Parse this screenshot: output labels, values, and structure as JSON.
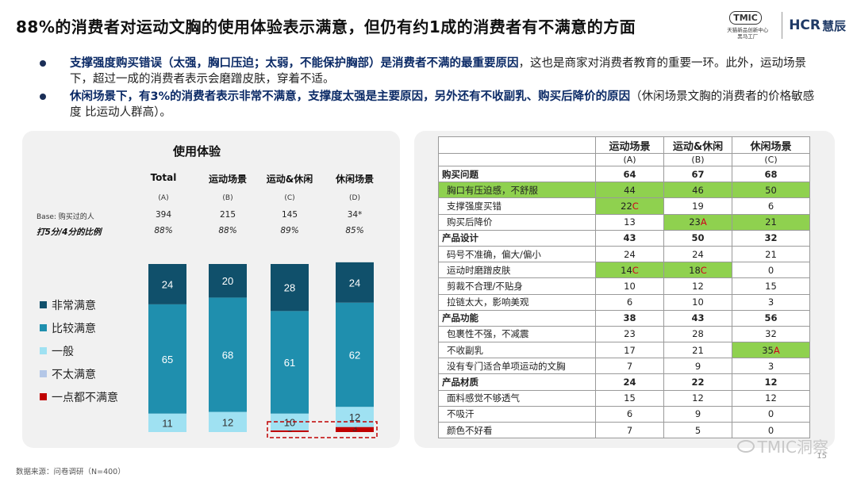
{
  "title": "88%的消费者对运动文胸的使用体验表示满意，但仍有约1成的消费者有不满意的方面",
  "logo": {
    "tmic": "TMIC",
    "tmic_sub1": "天猫新品创新中心",
    "tmic_sub2": "黑马工厂",
    "hcr": "HCR",
    "hcr_cn": "慧辰"
  },
  "bullets": [
    {
      "strong": "支撑强度购买错误（太强，胸口压迫；太弱，不能保护胸部）是消费者不满的最重要原因",
      "rest": "，这也是商家对消费者教育的重要一环。此外，运动场景下，超过一成的消费者表示会磨蹭皮肤，穿着不适。"
    },
    {
      "pre": "休闲场景下，有3%的消费者表示非常不满意，",
      "strong": "支撑度太强是主要原因，另外还有不收副乳、购买后降价的原因",
      "rest": "（休闲场景文胸的消费者的价格敏感度 比运动人群高）。"
    }
  ],
  "chart_data": {
    "type": "bar",
    "stacked": true,
    "title": "使用体验",
    "categories": [
      "Total",
      "运动场景",
      "运动&休闲",
      "休闲场景"
    ],
    "category_letters": [
      "(A)",
      "(B)",
      "(C)",
      "(D)"
    ],
    "base_label": "Base: 购买过的人",
    "base_values": [
      "394",
      "215",
      "145",
      "34*"
    ],
    "pct_label": "打5分/4分的比例",
    "pct_values": [
      "88%",
      "88%",
      "89%",
      "85%"
    ],
    "ylim": [
      0,
      100
    ],
    "series": [
      {
        "name": "一点都不满意",
        "color": "#c00000",
        "values": [
          0,
          0,
          1,
          3
        ],
        "labels": [
          "",
          "",
          "1",
          "3"
        ]
      },
      {
        "name": "不太满意",
        "color": "#b4c7e7",
        "values": [
          0,
          0,
          0,
          0
        ],
        "labels": [
          "",
          "",
          "",
          ""
        ]
      },
      {
        "name": "一般",
        "color": "#9fe1f2",
        "values": [
          11,
          12,
          10,
          12
        ],
        "labels": [
          "11",
          "12",
          "10",
          "12"
        ]
      },
      {
        "name": "比较满意",
        "color": "#1f8fae",
        "values": [
          65,
          68,
          61,
          62
        ],
        "labels": [
          "65",
          "68",
          "61",
          "62"
        ]
      },
      {
        "name": "非常满意",
        "color": "#10506b",
        "values": [
          24,
          20,
          28,
          24
        ],
        "labels": [
          "24",
          "20",
          "28",
          "24"
        ]
      }
    ],
    "legend_order": [
      "非常满意",
      "比较满意",
      "一般",
      "不太满意",
      "一点都不满意"
    ],
    "legend_colors": [
      "#10506b",
      "#1f8fae",
      "#9fe1f2",
      "#b4c7e7",
      "#c00000"
    ],
    "highlight_color": "#c00000"
  },
  "table": {
    "columns": [
      {
        "name": "运动场景",
        "letter": "(A)"
      },
      {
        "name": "运动&休闲",
        "letter": "(B)"
      },
      {
        "name": "休闲场景",
        "letter": "(C)"
      }
    ],
    "rows": [
      {
        "label": "购买问题",
        "group": true,
        "cells": [
          "64",
          "67",
          "68"
        ],
        "sig": [
          "",
          "",
          ""
        ],
        "hl": [
          false,
          false,
          false
        ]
      },
      {
        "label": "胸口有压迫感，不舒服",
        "group": false,
        "cells": [
          "44",
          "46",
          "50"
        ],
        "sig": [
          "",
          "",
          ""
        ],
        "hl": [
          true,
          true,
          true
        ],
        "hl_label": true
      },
      {
        "label": "支撑强度买错",
        "group": false,
        "cells": [
          "22",
          "19",
          "6"
        ],
        "sig": [
          "C",
          "",
          ""
        ],
        "hl": [
          true,
          false,
          false
        ]
      },
      {
        "label": "购买后降价",
        "group": false,
        "cells": [
          "13",
          "23",
          "21"
        ],
        "sig": [
          "",
          "A",
          ""
        ],
        "hl": [
          false,
          true,
          true
        ]
      },
      {
        "label": "产品设计",
        "group": true,
        "cells": [
          "43",
          "50",
          "32"
        ],
        "sig": [
          "",
          "",
          ""
        ],
        "hl": [
          false,
          false,
          false
        ]
      },
      {
        "label": "码号不准确，偏大/偏小",
        "group": false,
        "cells": [
          "24",
          "24",
          "21"
        ],
        "sig": [
          "",
          "",
          ""
        ],
        "hl": [
          false,
          false,
          false
        ]
      },
      {
        "label": "运动时磨蹭皮肤",
        "group": false,
        "cells": [
          "14",
          "18",
          "0"
        ],
        "sig": [
          "C",
          "C",
          ""
        ],
        "hl": [
          true,
          true,
          false
        ]
      },
      {
        "label": "剪裁不合理/不贴身",
        "group": false,
        "cells": [
          "10",
          "12",
          "15"
        ],
        "sig": [
          "",
          "",
          ""
        ],
        "hl": [
          false,
          false,
          false
        ]
      },
      {
        "label": "拉链太大，影响美观",
        "group": false,
        "cells": [
          "6",
          "10",
          "3"
        ],
        "sig": [
          "",
          "",
          ""
        ],
        "hl": [
          false,
          false,
          false
        ]
      },
      {
        "label": "产品功能",
        "group": true,
        "cells": [
          "38",
          "43",
          "56"
        ],
        "sig": [
          "",
          "",
          ""
        ],
        "hl": [
          false,
          false,
          false
        ]
      },
      {
        "label": "包裹性不强，不减震",
        "group": false,
        "cells": [
          "23",
          "28",
          "32"
        ],
        "sig": [
          "",
          "",
          ""
        ],
        "hl": [
          false,
          false,
          false
        ]
      },
      {
        "label": "不收副乳",
        "group": false,
        "cells": [
          "17",
          "21",
          "35"
        ],
        "sig": [
          "",
          "",
          "A"
        ],
        "hl": [
          false,
          false,
          true
        ]
      },
      {
        "label": "没有专门适合单项运动的文胸",
        "group": false,
        "cells": [
          "7",
          "9",
          "3"
        ],
        "sig": [
          "",
          "",
          ""
        ],
        "hl": [
          false,
          false,
          false
        ]
      },
      {
        "label": "产品材质",
        "group": true,
        "cells": [
          "24",
          "22",
          "12"
        ],
        "sig": [
          "",
          "",
          ""
        ],
        "hl": [
          false,
          false,
          false
        ]
      },
      {
        "label": "面料感觉不够透气",
        "group": false,
        "cells": [
          "15",
          "12",
          "12"
        ],
        "sig": [
          "",
          "",
          ""
        ],
        "hl": [
          false,
          false,
          false
        ]
      },
      {
        "label": "不吸汗",
        "group": false,
        "cells": [
          "6",
          "9",
          "0"
        ],
        "sig": [
          "",
          "",
          ""
        ],
        "hl": [
          false,
          false,
          false
        ]
      },
      {
        "label": "颜色不好看",
        "group": false,
        "cells": [
          "7",
          "5",
          "0"
        ],
        "sig": [
          "",
          "",
          ""
        ],
        "hl": [
          false,
          false,
          false
        ]
      }
    ],
    "highlight_color": "#8fd14f"
  },
  "footer": "数据来源：问卷调研（N=400）",
  "watermark": "TMIC洞察",
  "page_number": "15"
}
